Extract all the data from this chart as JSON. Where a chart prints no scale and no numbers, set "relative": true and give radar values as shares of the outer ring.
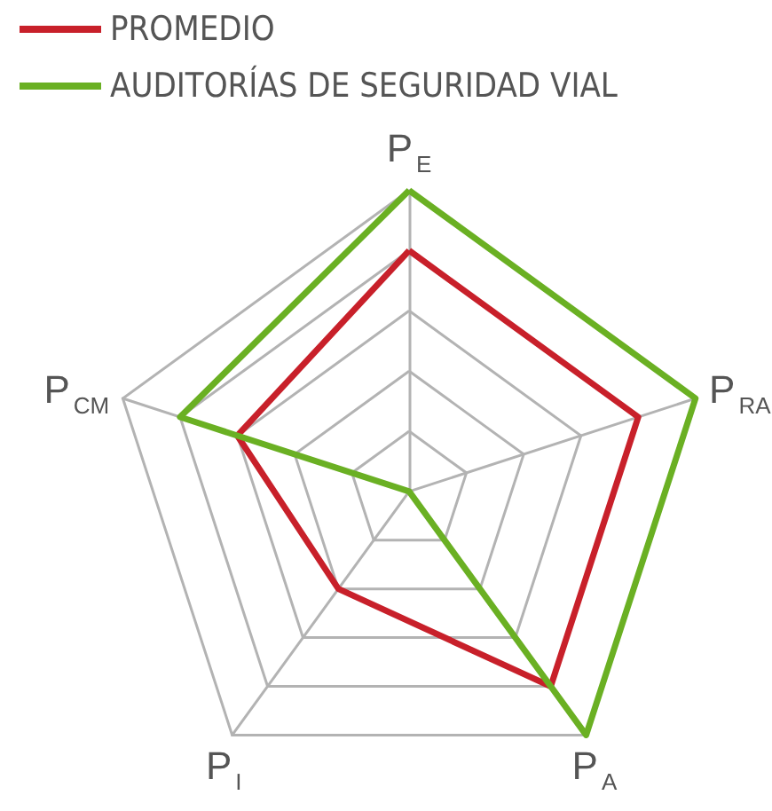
{
  "chart_data": {
    "type": "radar",
    "relative": true,
    "categories": [
      "P$_{E}$",
      "P$_{RA}$",
      "P$_{A}$",
      "P$_{I}$",
      "P$_{CM}$"
    ],
    "series": [
      {
        "name": "PROMEDIO",
        "color": "#c8202a",
        "values": [
          0.8,
          0.8,
          0.8,
          0.4,
          0.6
        ]
      },
      {
        "name": "AUDITORÍAS DE SEGURIDAD VIAL",
        "color": "#6ab023",
        "values": [
          1,
          1,
          1,
          0,
          0.8
        ]
      }
    ],
    "grid": true,
    "legend": "top left",
    "marker": "none",
    "line_style": "solid"
  }
}
